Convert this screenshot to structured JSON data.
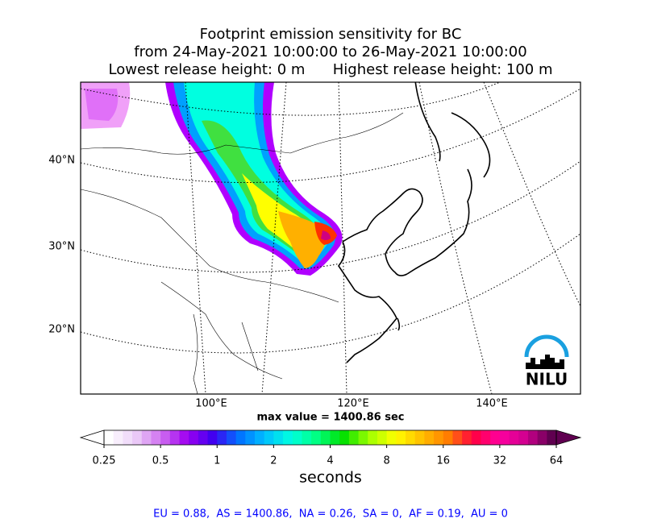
{
  "header": {
    "title_lines": [
      "Footprint emission sensitivity for BC",
      "from 24-May-2021 10:00:00 to 26-May-2021 10:00:00",
      "Lowest release height: 0 m      Highest release height: 100 m"
    ]
  },
  "map": {
    "lat_labels": [
      "40°N",
      "30°N",
      "20°N"
    ],
    "lon_labels": [
      "100°E",
      "120°E",
      "140°E"
    ],
    "logo": "NILU",
    "max_value": "max value = 1400.86 sec"
  },
  "colorbar": {
    "ticks": [
      0.25,
      0.5,
      1,
      2,
      4,
      8,
      16,
      32,
      64
    ],
    "label": "seconds",
    "colors": [
      "#ffffff",
      "#ecd0f8",
      "#d070f0",
      "#a000f0",
      "#4000f0",
      "#0070ff",
      "#00c0ff",
      "#00ffe0",
      "#00ff80",
      "#00e000",
      "#a0ff00",
      "#ffff00",
      "#ffc000",
      "#ff8000",
      "#ff0040",
      "#ff00a0",
      "#d00090",
      "#600050"
    ]
  },
  "footer": {
    "stats": "EU = 0.88,  AS = 1400.86,  NA = 0.26,  SA = 0,  AF = 0.19,  AU = 0"
  }
}
